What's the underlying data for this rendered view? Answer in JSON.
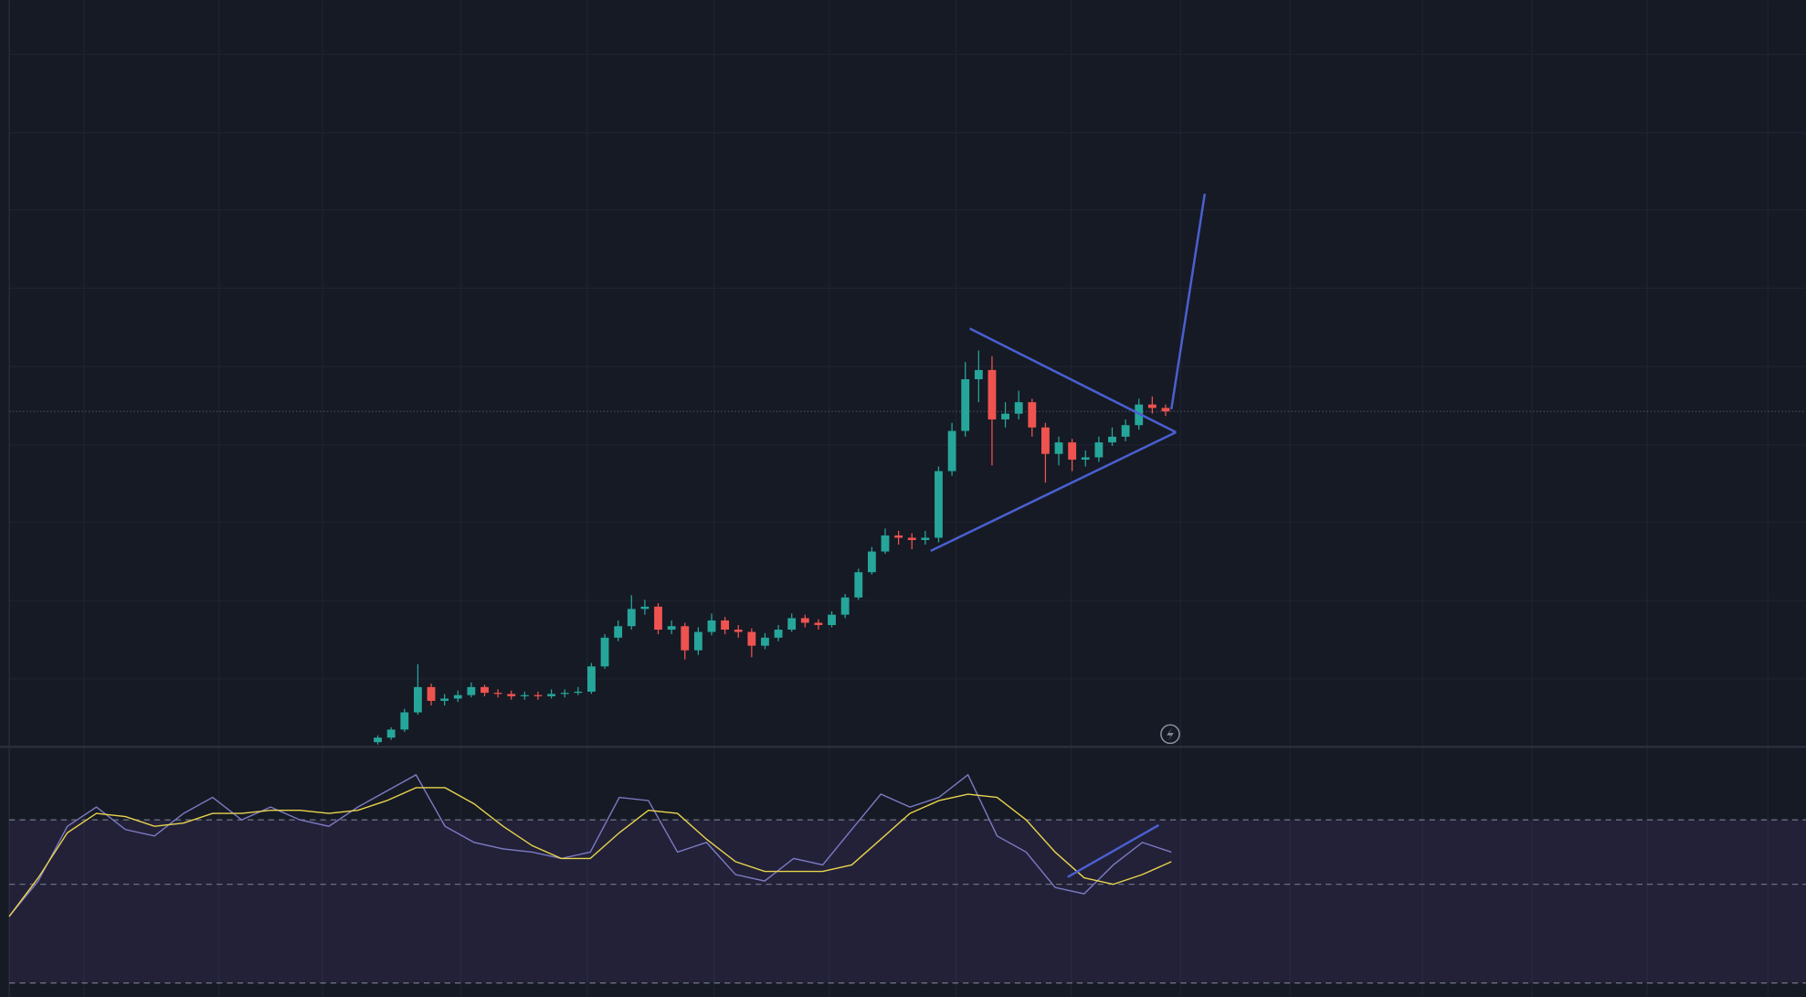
{
  "chart_data": [
    {
      "type": "candlestick",
      "ylim": [
        0,
        650
      ],
      "up_color": "#26a69a",
      "down_color": "#ef5350",
      "open": [
        4,
        8,
        15,
        30,
        52,
        40,
        42,
        45,
        52,
        47,
        46,
        44,
        45,
        44,
        46,
        47,
        48,
        70,
        95,
        105,
        120,
        122,
        102,
        105,
        84,
        100,
        110,
        102,
        100,
        88,
        95,
        102,
        112,
        108,
        106,
        115,
        130,
        152,
        170,
        184,
        182,
        180,
        182,
        240,
        275,
        320,
        328,
        285,
        290,
        300,
        278,
        255,
        265,
        250,
        252,
        265,
        270,
        280,
        298,
        295
      ],
      "high": [
        10,
        17,
        33,
        72,
        55,
        46,
        49,
        56,
        54,
        50,
        49,
        48,
        48,
        50,
        50,
        52,
        73,
        98,
        110,
        132,
        128,
        125,
        110,
        108,
        104,
        116,
        113,
        106,
        103,
        99,
        106,
        116,
        115,
        111,
        118,
        133,
        155,
        174,
        190,
        188,
        186,
        188,
        244,
        282,
        335,
        345,
        340,
        300,
        310,
        303,
        282,
        270,
        268,
        258,
        270,
        278,
        285,
        303,
        305,
        298
      ],
      "low": [
        2,
        6,
        13,
        28,
        36,
        36,
        39,
        43,
        44,
        43,
        41,
        41,
        41,
        42,
        43,
        45,
        46,
        68,
        92,
        102,
        115,
        98,
        98,
        76,
        80,
        97,
        98,
        95,
        78,
        85,
        92,
        100,
        104,
        102,
        104,
        112,
        128,
        150,
        168,
        176,
        172,
        176,
        178,
        236,
        270,
        300,
        245,
        278,
        285,
        270,
        230,
        245,
        240,
        244,
        248,
        262,
        266,
        276,
        290,
        288
      ],
      "close": [
        8,
        15,
        30,
        52,
        40,
        42,
        45,
        52,
        47,
        46,
        44,
        45,
        44,
        46,
        47,
        48,
        70,
        95,
        105,
        120,
        122,
        102,
        105,
        84,
        100,
        110,
        102,
        100,
        88,
        95,
        102,
        112,
        108,
        106,
        115,
        130,
        152,
        170,
        184,
        182,
        180,
        182,
        240,
        275,
        320,
        328,
        285,
        290,
        300,
        278,
        255,
        265,
        250,
        252,
        265,
        270,
        280,
        298,
        295,
        292
      ]
    },
    {
      "type": "line",
      "ylim": [
        15,
        92
      ],
      "bands": [
        70,
        50
      ],
      "series": [
        {
          "color": "#7e7bc4",
          "values": [
            40,
            51,
            68,
            74,
            67,
            65,
            72,
            77,
            70,
            74,
            70,
            68,
            74,
            79,
            84,
            68,
            63,
            61,
            60,
            58,
            60,
            77,
            76,
            60,
            63,
            53,
            51,
            58,
            56,
            67,
            78,
            74,
            77,
            84,
            65,
            60,
            49,
            47,
            56,
            63,
            60
          ]
        },
        {
          "color": "#e8d44d",
          "values": [
            40,
            52,
            66,
            72,
            71,
            68,
            69,
            72,
            72,
            73,
            73,
            72,
            73,
            76,
            80,
            80,
            75,
            68,
            62,
            58,
            58,
            66,
            73,
            72,
            64,
            57,
            54,
            54,
            54,
            56,
            64,
            72,
            76,
            78,
            77,
            70,
            60,
            52,
            50,
            53,
            57
          ]
        }
      ]
    }
  ]
}
